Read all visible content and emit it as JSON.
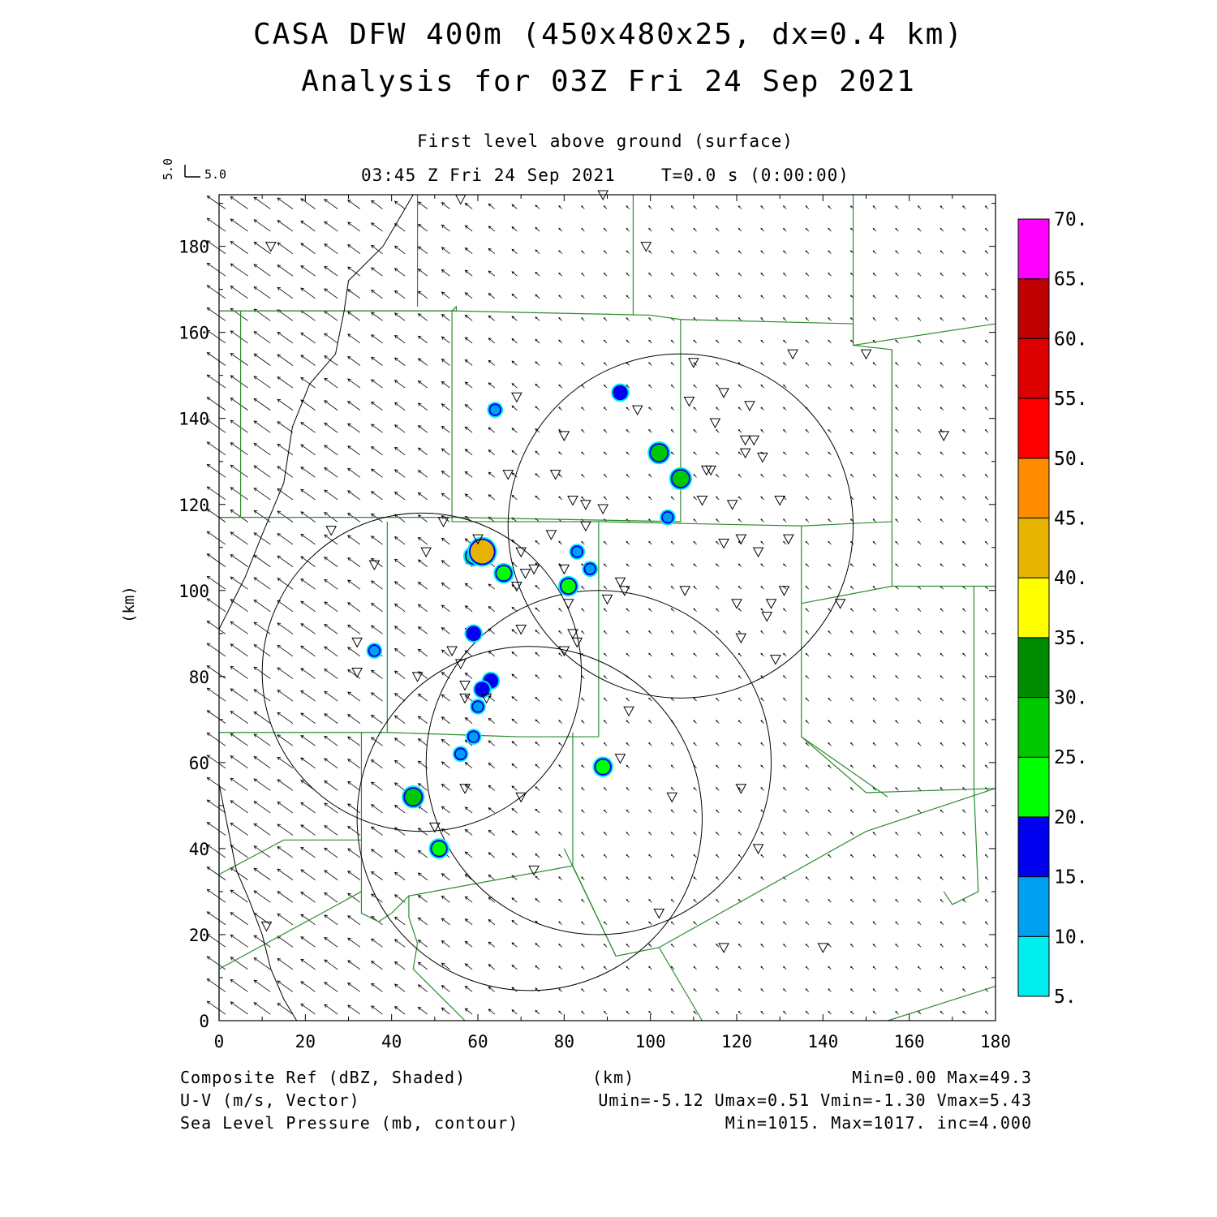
{
  "header": {
    "title_line1": "CASA DFW 400m (450x480x25, dx=0.4 km)",
    "title_line2": "Analysis for 03Z Fri 24 Sep 2021",
    "level": "First level above ground (surface)",
    "valid_time": "03:45 Z Fri 24 Sep 2021",
    "model_time": "T=0.0 s (0:00:00)"
  },
  "vector_key": {
    "u_label": "5.0",
    "v_label": "5.0"
  },
  "footer": {
    "field1_name": "Composite Ref (dBZ, Shaded)",
    "field1_stats": "Min=0.00 Max=49.3",
    "field2_name": "U-V (m/s, Vector)",
    "field2_stats": "Umin=-5.12 Umax=0.51 Vmin=-1.30 Vmax=5.43",
    "field3_name": "Sea Level Pressure (mb, contour)",
    "field3_stats": "Min=1015. Max=1017. inc=4.000",
    "x_unit": "(km)"
  },
  "chart_data": {
    "type": "heatmap",
    "xlabel": "(km)",
    "ylabel": "(km)",
    "xlim": [
      0,
      180
    ],
    "ylim": [
      0,
      192
    ],
    "x_ticks": [
      "0",
      "20",
      "40",
      "60",
      "80",
      "100",
      "120",
      "140",
      "160",
      "180"
    ],
    "y_ticks": [
      "0",
      "20",
      "40",
      "60",
      "80",
      "100",
      "120",
      "140",
      "160",
      "180"
    ],
    "colorbar": {
      "levels": [
        "5.",
        "10.",
        "15.",
        "20.",
        "25.",
        "30.",
        "35.",
        "40.",
        "45.",
        "50.",
        "55.",
        "60.",
        "65.",
        "70."
      ],
      "colors": [
        "#00eeee",
        "#00a0f0",
        "#0000f0",
        "#00ff00",
        "#00c800",
        "#008c00",
        "#ffff00",
        "#e6b400",
        "#ff8c00",
        "#ff0000",
        "#dc0000",
        "#be0000",
        "#ff00ff"
      ]
    },
    "radar_range_rings": [
      {
        "center": [
          107,
          115
        ],
        "radius": 40
      },
      {
        "center": [
          47,
          81
        ],
        "radius": 37
      },
      {
        "center": [
          88,
          60
        ],
        "radius": 40
      },
      {
        "center": [
          72,
          47
        ],
        "radius": 40
      }
    ],
    "reflectivity_cells": [
      {
        "x": 93,
        "y": 146,
        "dbz": 15
      },
      {
        "x": 64,
        "y": 142,
        "dbz": 10
      },
      {
        "x": 102,
        "y": 132,
        "dbz": 25
      },
      {
        "x": 107,
        "y": 126,
        "dbz": 25
      },
      {
        "x": 104,
        "y": 117,
        "dbz": 10
      },
      {
        "x": 59,
        "y": 108,
        "dbz": 20
      },
      {
        "x": 61,
        "y": 109,
        "dbz": 40
      },
      {
        "x": 66,
        "y": 104,
        "dbz": 20
      },
      {
        "x": 81,
        "y": 101,
        "dbz": 20
      },
      {
        "x": 83,
        "y": 109,
        "dbz": 10
      },
      {
        "x": 86,
        "y": 105,
        "dbz": 10
      },
      {
        "x": 59,
        "y": 90,
        "dbz": 15
      },
      {
        "x": 36,
        "y": 86,
        "dbz": 10
      },
      {
        "x": 63,
        "y": 79,
        "dbz": 15
      },
      {
        "x": 61,
        "y": 77,
        "dbz": 15
      },
      {
        "x": 60,
        "y": 73,
        "dbz": 10
      },
      {
        "x": 59,
        "y": 66,
        "dbz": 10
      },
      {
        "x": 56,
        "y": 62,
        "dbz": 10
      },
      {
        "x": 89,
        "y": 59,
        "dbz": 20
      },
      {
        "x": 45,
        "y": 52,
        "dbz": 25
      },
      {
        "x": 51,
        "y": 40,
        "dbz": 20
      }
    ],
    "vector_field_stats": {
      "umin": -5.12,
      "umax": 0.51,
      "vmin": -1.3,
      "vmax": 5.43
    },
    "slp_contours_mb": {
      "min": 1015,
      "max": 1017,
      "inc": 4
    }
  }
}
